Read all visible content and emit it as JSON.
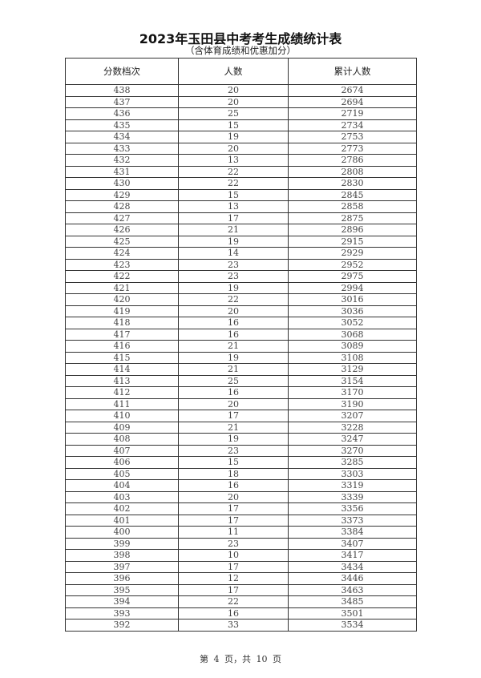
{
  "title": "2023年玉田县中考考生成绩统计表",
  "subtitle": "（含体育成绩和优惠加分）",
  "table": {
    "headers": [
      "分数档次",
      "人数",
      "累计人数"
    ],
    "rows": [
      [
        "438",
        "20",
        "2674"
      ],
      [
        "437",
        "20",
        "2694"
      ],
      [
        "436",
        "25",
        "2719"
      ],
      [
        "435",
        "15",
        "2734"
      ],
      [
        "434",
        "19",
        "2753"
      ],
      [
        "433",
        "20",
        "2773"
      ],
      [
        "432",
        "13",
        "2786"
      ],
      [
        "431",
        "22",
        "2808"
      ],
      [
        "430",
        "22",
        "2830"
      ],
      [
        "429",
        "15",
        "2845"
      ],
      [
        "428",
        "13",
        "2858"
      ],
      [
        "427",
        "17",
        "2875"
      ],
      [
        "426",
        "21",
        "2896"
      ],
      [
        "425",
        "19",
        "2915"
      ],
      [
        "424",
        "14",
        "2929"
      ],
      [
        "423",
        "23",
        "2952"
      ],
      [
        "422",
        "23",
        "2975"
      ],
      [
        "421",
        "19",
        "2994"
      ],
      [
        "420",
        "22",
        "3016"
      ],
      [
        "419",
        "20",
        "3036"
      ],
      [
        "418",
        "16",
        "3052"
      ],
      [
        "417",
        "16",
        "3068"
      ],
      [
        "416",
        "21",
        "3089"
      ],
      [
        "415",
        "19",
        "3108"
      ],
      [
        "414",
        "21",
        "3129"
      ],
      [
        "413",
        "25",
        "3154"
      ],
      [
        "412",
        "16",
        "3170"
      ],
      [
        "411",
        "20",
        "3190"
      ],
      [
        "410",
        "17",
        "3207"
      ],
      [
        "409",
        "21",
        "3228"
      ],
      [
        "408",
        "19",
        "3247"
      ],
      [
        "407",
        "23",
        "3270"
      ],
      [
        "406",
        "15",
        "3285"
      ],
      [
        "405",
        "18",
        "3303"
      ],
      [
        "404",
        "16",
        "3319"
      ],
      [
        "403",
        "20",
        "3339"
      ],
      [
        "402",
        "17",
        "3356"
      ],
      [
        "401",
        "17",
        "3373"
      ],
      [
        "400",
        "11",
        "3384"
      ],
      [
        "399",
        "23",
        "3407"
      ],
      [
        "398",
        "10",
        "3417"
      ],
      [
        "397",
        "17",
        "3434"
      ],
      [
        "396",
        "12",
        "3446"
      ],
      [
        "395",
        "17",
        "3463"
      ],
      [
        "394",
        "22",
        "3485"
      ],
      [
        "393",
        "16",
        "3501"
      ],
      [
        "392",
        "33",
        "3534"
      ]
    ]
  },
  "footer": "第 4 页，共 10 页"
}
